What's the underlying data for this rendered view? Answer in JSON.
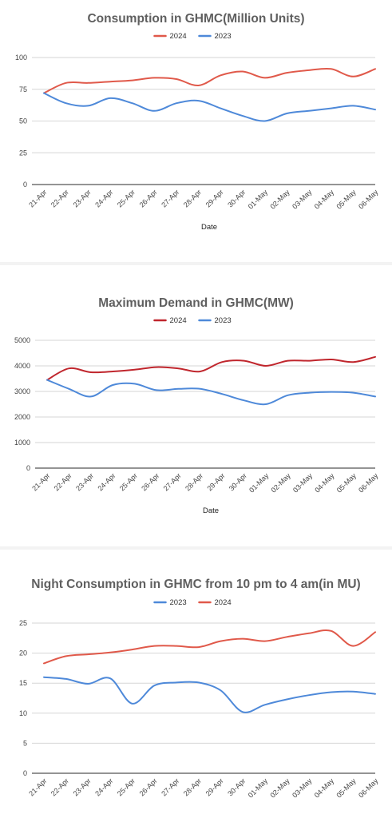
{
  "chart_data": [
    {
      "type": "line",
      "title": "Consumption in GHMC(Million Units)",
      "xlabel": "Date",
      "ylabel": "",
      "categories": [
        "21-Apr",
        "22-Apr",
        "23-Apr",
        "24-Apr",
        "25-Apr",
        "26-Apr",
        "27-Apr",
        "28-Apr",
        "29-Apr",
        "30-Apr",
        "01-May",
        "02-May",
        "03-May",
        "04-May",
        "05-May",
        "06-May"
      ],
      "ylim": [
        0,
        100
      ],
      "yticks": [
        "0",
        "25",
        "50",
        "75",
        "100"
      ],
      "grid": true,
      "legend_position": "top-center",
      "series": [
        {
          "name": "2024",
          "color": "#e0594a",
          "values": [
            72,
            80,
            80,
            81,
            82,
            84,
            83,
            78,
            86,
            89,
            84,
            88,
            90,
            91,
            85,
            91
          ]
        },
        {
          "name": "2023",
          "color": "#4e89d9",
          "values": [
            72,
            64,
            62,
            68,
            64,
            58,
            64,
            66,
            60,
            54,
            50,
            56,
            58,
            60,
            62,
            59
          ]
        }
      ]
    },
    {
      "type": "line",
      "title": "Maximum Demand in GHMC(MW)",
      "xlabel": "Date",
      "ylabel": "",
      "categories": [
        "21-Apr",
        "22-Apr",
        "23-Apr",
        "24-Apr",
        "25-Apr",
        "26-Apr",
        "27-Apr",
        "28-Apr",
        "29-Apr",
        "30-Apr",
        "01-May",
        "02-May",
        "03-May",
        "04-May",
        "05-May",
        "06-May"
      ],
      "ylim": [
        0,
        5000
      ],
      "yticks": [
        "0",
        "1000",
        "2000",
        "3000",
        "4000",
        "5000"
      ],
      "grid": true,
      "legend_position": "top-center",
      "series": [
        {
          "name": "2024",
          "color": "#c0262d",
          "values": [
            3450,
            3900,
            3750,
            3780,
            3850,
            3950,
            3900,
            3780,
            4150,
            4200,
            4000,
            4200,
            4200,
            4250,
            4150,
            4350
          ]
        },
        {
          "name": "2023",
          "color": "#4e89d9",
          "values": [
            3450,
            3100,
            2800,
            3250,
            3300,
            3050,
            3100,
            3100,
            2900,
            2650,
            2500,
            2850,
            2950,
            2980,
            2950,
            2800
          ]
        }
      ]
    },
    {
      "type": "line",
      "title": "Night Consumption in GHMC from 10 pm to 4 am(in MU)",
      "xlabel": "",
      "ylabel": "",
      "categories": [
        "21-Apr",
        "22-Apr",
        "23-Apr",
        "24-Apr",
        "25-Apr",
        "26-Apr",
        "27-Apr",
        "28-Apr",
        "29-Apr",
        "30-Apr",
        "01-May",
        "02-May",
        "03-May",
        "04-May",
        "05-May",
        "06-May"
      ],
      "ylim": [
        0,
        25
      ],
      "yticks": [
        "0",
        "5",
        "10",
        "15",
        "20",
        "25"
      ],
      "grid": true,
      "legend_position": "top-center",
      "series": [
        {
          "name": "2023",
          "color": "#4e89d9",
          "values": [
            16,
            15.7,
            14.9,
            15.8,
            11.6,
            14.6,
            15.1,
            15.1,
            13.8,
            10.2,
            11.4,
            12.3,
            13,
            13.5,
            13.6,
            13.2
          ]
        },
        {
          "name": "2024",
          "color": "#e0594a",
          "values": [
            18.3,
            19.5,
            19.8,
            20.1,
            20.6,
            21.2,
            21.2,
            21,
            22,
            22.4,
            22,
            22.7,
            23.3,
            23.7,
            21.2,
            23.5
          ]
        }
      ]
    }
  ]
}
